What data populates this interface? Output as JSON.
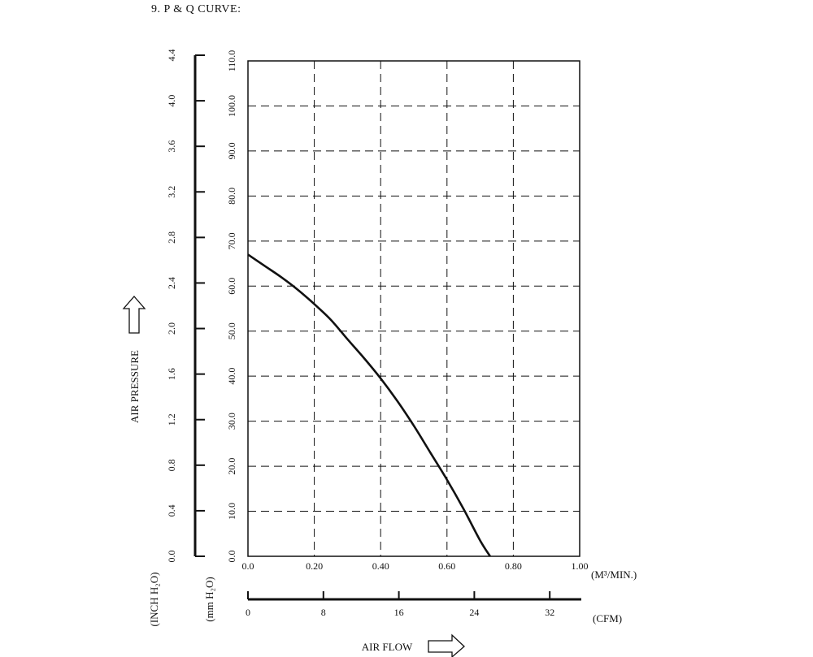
{
  "page": {
    "heading": "9. P & Q CURVE:"
  },
  "chart_data": {
    "type": "line",
    "xlabel": "AIR FLOW",
    "ylabel": "AIR PRESSURE",
    "x_unit": "(M³/MIN.)",
    "x_secondary_unit": "(CFM)",
    "y_unit": "(mm H₂O)",
    "y_secondary_unit": "(INCH H₂O)",
    "xlim": [
      0,
      1.0
    ],
    "ylim": [
      0,
      110
    ],
    "grid": true,
    "x_ticks": [
      "0.0",
      "0.20",
      "0.40",
      "0.60",
      "0.80",
      "1.00"
    ],
    "x_tick_values": [
      0,
      0.2,
      0.4,
      0.6,
      0.8,
      1.0
    ],
    "y_ticks": [
      "0.0",
      "10.0",
      "20.0",
      "30.0",
      "40.0",
      "50.0",
      "60.0",
      "70.0",
      "80.0",
      "90.0",
      "100.0",
      "110.0"
    ],
    "y_tick_values": [
      0,
      10,
      20,
      30,
      40,
      50,
      60,
      70,
      80,
      90,
      100,
      110
    ],
    "cfm_ticks": [
      "0",
      "8",
      "16",
      "24",
      "32"
    ],
    "cfm_tick_values": [
      0,
      8,
      16,
      24,
      32
    ],
    "inch_ticks": [
      "0.0",
      "0.4",
      "0.8",
      "1.2",
      "1.6",
      "2.0",
      "2.4",
      "2.8",
      "3.2",
      "3.6",
      "4.0",
      "4.4"
    ],
    "inch_tick_values": [
      0,
      0.4,
      0.8,
      1.2,
      1.6,
      2.0,
      2.4,
      2.8,
      3.2,
      3.6,
      4.0,
      4.4
    ],
    "series": [
      {
        "x": [
          0.0,
          0.05,
          0.1,
          0.15,
          0.2,
          0.25,
          0.3,
          0.35,
          0.4,
          0.45,
          0.5,
          0.55,
          0.6,
          0.65,
          0.7,
          0.73
        ],
        "y": [
          67,
          64.5,
          62,
          59.2,
          56,
          52.5,
          48.2,
          44,
          39.5,
          34.5,
          29,
          23,
          17,
          10.5,
          3.5,
          0
        ]
      }
    ]
  }
}
